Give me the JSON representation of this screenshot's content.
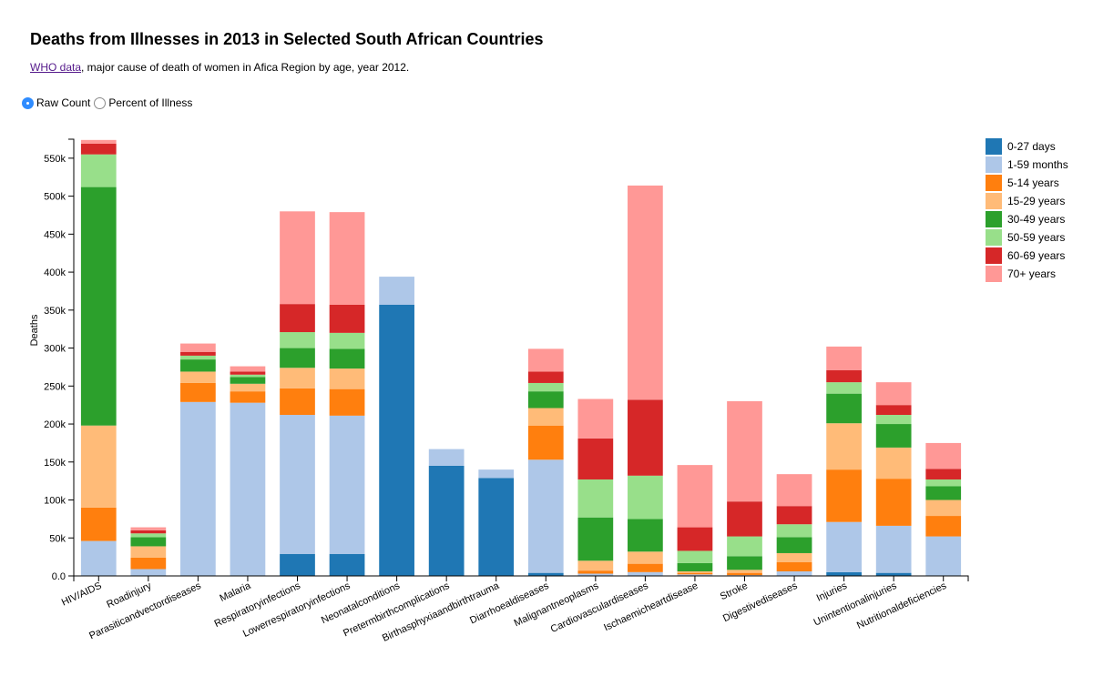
{
  "title": "Deaths from Illnesses in 2013 in Selected South African Countries",
  "subtitle": {
    "link_text": "WHO data",
    "rest": ", major cause of death of women in Afica Region by age, year 2012."
  },
  "controls": {
    "options": [
      {
        "label": "Raw Count",
        "checked": true
      },
      {
        "label": "Percent of Illness",
        "checked": false
      }
    ]
  },
  "chart_data": {
    "type": "bar",
    "stacked": true,
    "ylabel": "Deaths",
    "ylim": [
      0,
      575000
    ],
    "yticks": [
      0,
      50000,
      100000,
      150000,
      200000,
      250000,
      300000,
      350000,
      400000,
      450000,
      500000,
      550000
    ],
    "ytick_labels": [
      "0.0",
      "50k",
      "100k",
      "150k",
      "200k",
      "250k",
      "300k",
      "350k",
      "400k",
      "450k",
      "500k",
      "550k"
    ],
    "legend_position": "top-right",
    "categories": [
      "HIV/AIDS",
      "Roadinjury",
      "Parasiticandvectordiseases",
      "Malaria",
      "Respiratoryinfections",
      "Lowerrespiratoryinfections",
      "Neonatalconditions",
      "Pretermbirthcomplications",
      "Birthasphyxiaandbirthtrauma",
      "Diarrhoealdiseases",
      "Malignantneoplasms",
      "Cardiovasculardiseases",
      "Ischaemicheartdisease",
      "Stroke",
      "Digestivediseases",
      "Injuries",
      "Unintentionalinjuries",
      "Nutritionaldeficiencies"
    ],
    "series": [
      {
        "name": "0-27 days",
        "color": "#1f77b4",
        "values": [
          0,
          0,
          0,
          0,
          29000,
          29000,
          357000,
          145000,
          129000,
          4000,
          0,
          0,
          0,
          0,
          0,
          5000,
          4000,
          0
        ]
      },
      {
        "name": "1-59 months",
        "color": "#aec7e8",
        "values": [
          46000,
          9000,
          229000,
          228000,
          183000,
          182000,
          37000,
          22000,
          11000,
          149000,
          3000,
          5000,
          2000,
          1000,
          6000,
          66000,
          62000,
          52000
        ]
      },
      {
        "name": "5-14 years",
        "color": "#ff7f0e",
        "values": [
          44000,
          15000,
          25000,
          15000,
          35000,
          35000,
          0,
          0,
          0,
          45000,
          4000,
          11000,
          2000,
          3000,
          12000,
          69000,
          62000,
          27000
        ]
      },
      {
        "name": "15-29 years",
        "color": "#ffbb78",
        "values": [
          108000,
          15000,
          15000,
          10000,
          27000,
          27000,
          0,
          0,
          0,
          23000,
          13000,
          16000,
          2000,
          4000,
          12000,
          61000,
          41000,
          21000
        ]
      },
      {
        "name": "30-49 years",
        "color": "#2ca02c",
        "values": [
          314000,
          12000,
          16000,
          9000,
          26000,
          26000,
          0,
          0,
          0,
          22000,
          57000,
          43000,
          11000,
          18000,
          21000,
          39000,
          31000,
          18000
        ]
      },
      {
        "name": "50-59 years",
        "color": "#98df8a",
        "values": [
          43000,
          5000,
          5000,
          3000,
          21000,
          21000,
          0,
          0,
          0,
          11000,
          50000,
          57000,
          16000,
          26000,
          17000,
          15000,
          12000,
          9000
        ]
      },
      {
        "name": "60-69 years",
        "color": "#d62728",
        "values": [
          14000,
          4000,
          5000,
          4000,
          37000,
          37000,
          0,
          0,
          0,
          15000,
          54000,
          100000,
          31000,
          46000,
          24000,
          16000,
          13000,
          14000
        ]
      },
      {
        "name": "70+ years",
        "color": "#ff9896",
        "values": [
          5000,
          4000,
          11000,
          7000,
          122000,
          122000,
          0,
          0,
          0,
          30000,
          52000,
          282000,
          82000,
          132000,
          42000,
          31000,
          30000,
          34000
        ]
      }
    ]
  }
}
